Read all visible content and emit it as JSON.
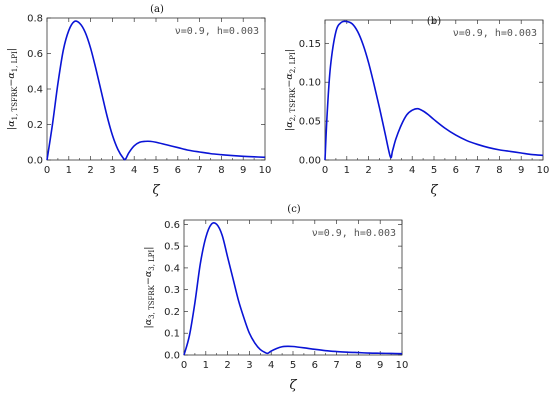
{
  "colors": {
    "curve": "#0a14d6",
    "frame": "#333333"
  },
  "chart_data": [
    {
      "type": "line",
      "panel_label": "(a)",
      "annotation": "ν=0.9, h=0.003",
      "xlabel": "ζ",
      "ylabel": "|α1, TSFRK−α1, LPI|",
      "ylabel_main": "α",
      "ylabel_sub1": "1, TSFRK",
      "ylabel_mid": "−α",
      "ylabel_sub2": "1, LPI",
      "xlim": [
        0,
        10
      ],
      "ylim": [
        0,
        0.8
      ],
      "xticks": [
        0,
        1,
        2,
        3,
        4,
        5,
        6,
        7,
        8,
        9,
        10
      ],
      "yticks": [
        0.0,
        0.2,
        0.4,
        0.6,
        0.8
      ],
      "ytick_labels": [
        "0.0",
        "0.2",
        "0.4",
        "0.6",
        "0.8"
      ],
      "series": [
        {
          "x": [
            0,
            0.25,
            0.5,
            0.75,
            1.0,
            1.25,
            1.5,
            1.75,
            2.0,
            2.25,
            2.5,
            2.75,
            3.0,
            3.25,
            3.5,
            3.6,
            3.75,
            4.0,
            4.25,
            4.5,
            4.75,
            5.0,
            5.5,
            6.0,
            6.5,
            7.0,
            7.5,
            8.0,
            8.5,
            9.0,
            9.5,
            10.0
          ],
          "y": [
            0,
            0.2,
            0.43,
            0.62,
            0.73,
            0.78,
            0.77,
            0.72,
            0.63,
            0.51,
            0.38,
            0.25,
            0.14,
            0.06,
            0.01,
            0.005,
            0.04,
            0.08,
            0.1,
            0.105,
            0.105,
            0.1,
            0.085,
            0.07,
            0.055,
            0.045,
            0.036,
            0.03,
            0.025,
            0.021,
            0.018,
            0.015
          ]
        }
      ]
    },
    {
      "type": "line",
      "panel_label": "(b)",
      "annotation": "ν=0.9, h=0.003",
      "xlabel": "ζ",
      "ylabel": "|α2, TSFRK−α2, LPI|",
      "ylabel_main": "α",
      "ylabel_sub1": "2, TSFRK",
      "ylabel_mid": "−α",
      "ylabel_sub2": "2, LPI",
      "xlim": [
        0,
        10
      ],
      "ylim": [
        0,
        0.18
      ],
      "xticks": [
        0,
        1,
        2,
        3,
        4,
        5,
        6,
        7,
        8,
        9,
        10
      ],
      "yticks": [
        0.0,
        0.05,
        0.1,
        0.15
      ],
      "ytick_labels": [
        "0.00",
        "0.05",
        "0.10",
        "0.15"
      ],
      "series": [
        {
          "x": [
            0,
            0.1,
            0.25,
            0.5,
            0.75,
            1.0,
            1.25,
            1.5,
            1.75,
            2.0,
            2.25,
            2.5,
            2.75,
            3.0,
            3.1,
            3.25,
            3.5,
            3.75,
            4.0,
            4.25,
            4.5,
            4.75,
            5.0,
            5.5,
            6.0,
            6.5,
            7.0,
            7.5,
            8.0,
            8.5,
            9.0,
            9.5,
            10.0
          ],
          "y": [
            0,
            0.06,
            0.12,
            0.165,
            0.177,
            0.178,
            0.175,
            0.165,
            0.148,
            0.125,
            0.097,
            0.067,
            0.035,
            0.004,
            0.012,
            0.027,
            0.045,
            0.058,
            0.064,
            0.066,
            0.063,
            0.058,
            0.052,
            0.041,
            0.032,
            0.025,
            0.02,
            0.016,
            0.013,
            0.011,
            0.009,
            0.007,
            0.006
          ]
        }
      ]
    },
    {
      "type": "line",
      "panel_label": "(c)",
      "annotation": "ν=0.9, h=0.003",
      "xlabel": "ζ",
      "ylabel": "|α3, TSFRK−α3, LPI|",
      "ylabel_main": "α",
      "ylabel_sub1": "3, TSFRK",
      "ylabel_mid": "−α",
      "ylabel_sub2": "3, LPI",
      "xlim": [
        0,
        10
      ],
      "ylim": [
        0,
        0.62
      ],
      "xticks": [
        0,
        1,
        2,
        3,
        4,
        5,
        6,
        7,
        8,
        9,
        10
      ],
      "yticks": [
        0.0,
        0.1,
        0.2,
        0.3,
        0.4,
        0.5,
        0.6
      ],
      "ytick_labels": [
        "0.0",
        "0.1",
        "0.2",
        "0.3",
        "0.4",
        "0.5",
        "0.6"
      ],
      "series": [
        {
          "x": [
            0,
            0.25,
            0.5,
            0.75,
            1.0,
            1.25,
            1.5,
            1.75,
            2.0,
            2.25,
            2.5,
            2.75,
            3.0,
            3.25,
            3.5,
            3.75,
            3.85,
            4.0,
            4.25,
            4.5,
            4.75,
            5.0,
            5.5,
            6.0,
            6.5,
            7.0,
            7.5,
            8.0,
            8.5,
            9.0,
            9.5,
            10.0
          ],
          "y": [
            0,
            0.09,
            0.24,
            0.42,
            0.54,
            0.6,
            0.6,
            0.55,
            0.45,
            0.35,
            0.25,
            0.17,
            0.1,
            0.055,
            0.025,
            0.01,
            0.008,
            0.018,
            0.03,
            0.038,
            0.04,
            0.039,
            0.033,
            0.026,
            0.02,
            0.016,
            0.013,
            0.011,
            0.009,
            0.008,
            0.007,
            0.006
          ]
        }
      ]
    }
  ]
}
